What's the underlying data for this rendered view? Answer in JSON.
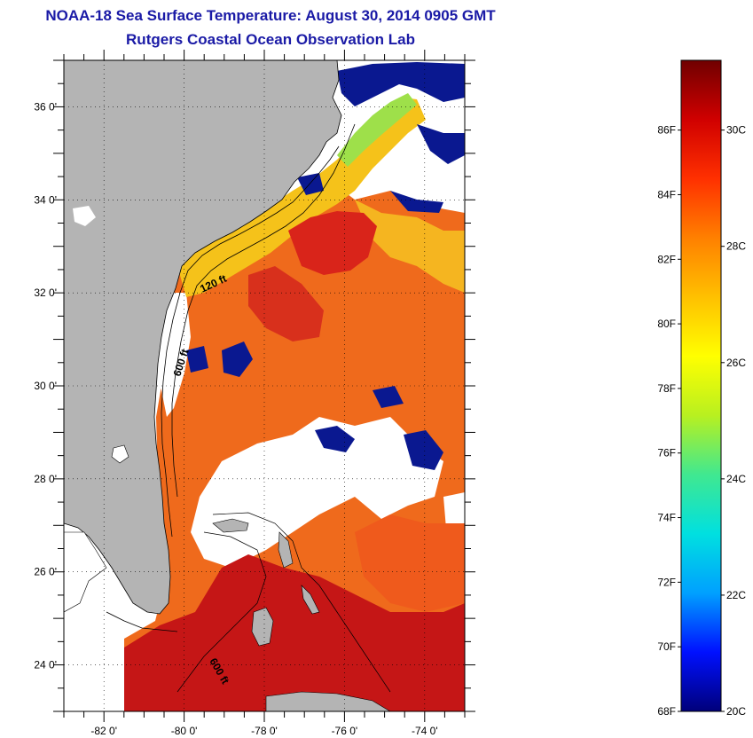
{
  "title": "NOAA-18 Sea Surface Temperature:  August 30, 2014 0905 GMT",
  "subtitle": "Rutgers Coastal Ocean Observation Lab",
  "map": {
    "lat_ticks": [
      {
        "value": 36,
        "label": "36 0'"
      },
      {
        "value": 34,
        "label": "34 0'"
      },
      {
        "value": 32,
        "label": "32 0'"
      },
      {
        "value": 30,
        "label": "30 0'"
      },
      {
        "value": 28,
        "label": "28 0'"
      },
      {
        "value": 26,
        "label": "26 0'"
      },
      {
        "value": 24,
        "label": "24 0'"
      }
    ],
    "lon_ticks": [
      {
        "value": -82,
        "label": "-82 0'"
      },
      {
        "value": -80,
        "label": "-80 0'"
      },
      {
        "value": -78,
        "label": "-78 0'"
      },
      {
        "value": -76,
        "label": "-76 0'"
      },
      {
        "value": -74,
        "label": "-74 0'"
      }
    ],
    "lat_range": [
      23,
      37
    ],
    "lon_range": [
      -83,
      -73
    ],
    "contours": [
      {
        "label": "120 ft"
      },
      {
        "label": "600 ft"
      },
      {
        "label": "600 ft"
      }
    ],
    "colors": {
      "land": "#b4b4b4",
      "cloud": "#ffffff",
      "water_warm": "#e8401a",
      "water_hot": "#c41818",
      "water_mid": "#f0a020",
      "water_cool": "#0a1890"
    }
  },
  "colorbar": {
    "f_labels": [
      {
        "value": 86,
        "label": "86F"
      },
      {
        "value": 84,
        "label": "84F"
      },
      {
        "value": 82,
        "label": "82F"
      },
      {
        "value": 80,
        "label": "80F"
      },
      {
        "value": 78,
        "label": "78F"
      },
      {
        "value": 76,
        "label": "76F"
      },
      {
        "value": 74,
        "label": "74F"
      },
      {
        "value": 72,
        "label": "72F"
      },
      {
        "value": 70,
        "label": "70F"
      },
      {
        "value": 68,
        "label": "68F"
      }
    ],
    "c_labels": [
      {
        "value": 30,
        "label": "30C"
      },
      {
        "value": 28,
        "label": "28C"
      },
      {
        "value": 26,
        "label": "26C"
      },
      {
        "value": 24,
        "label": "24C"
      },
      {
        "value": 22,
        "label": "22C"
      },
      {
        "value": 20,
        "label": "20C"
      }
    ],
    "range_c": [
      20,
      31.2
    ],
    "stops": [
      "#00007a",
      "#0010ff",
      "#00a0ff",
      "#00e0e0",
      "#40e890",
      "#b8f020",
      "#ffff00",
      "#ffc000",
      "#ff8000",
      "#ff3000",
      "#d00000",
      "#700000"
    ]
  }
}
